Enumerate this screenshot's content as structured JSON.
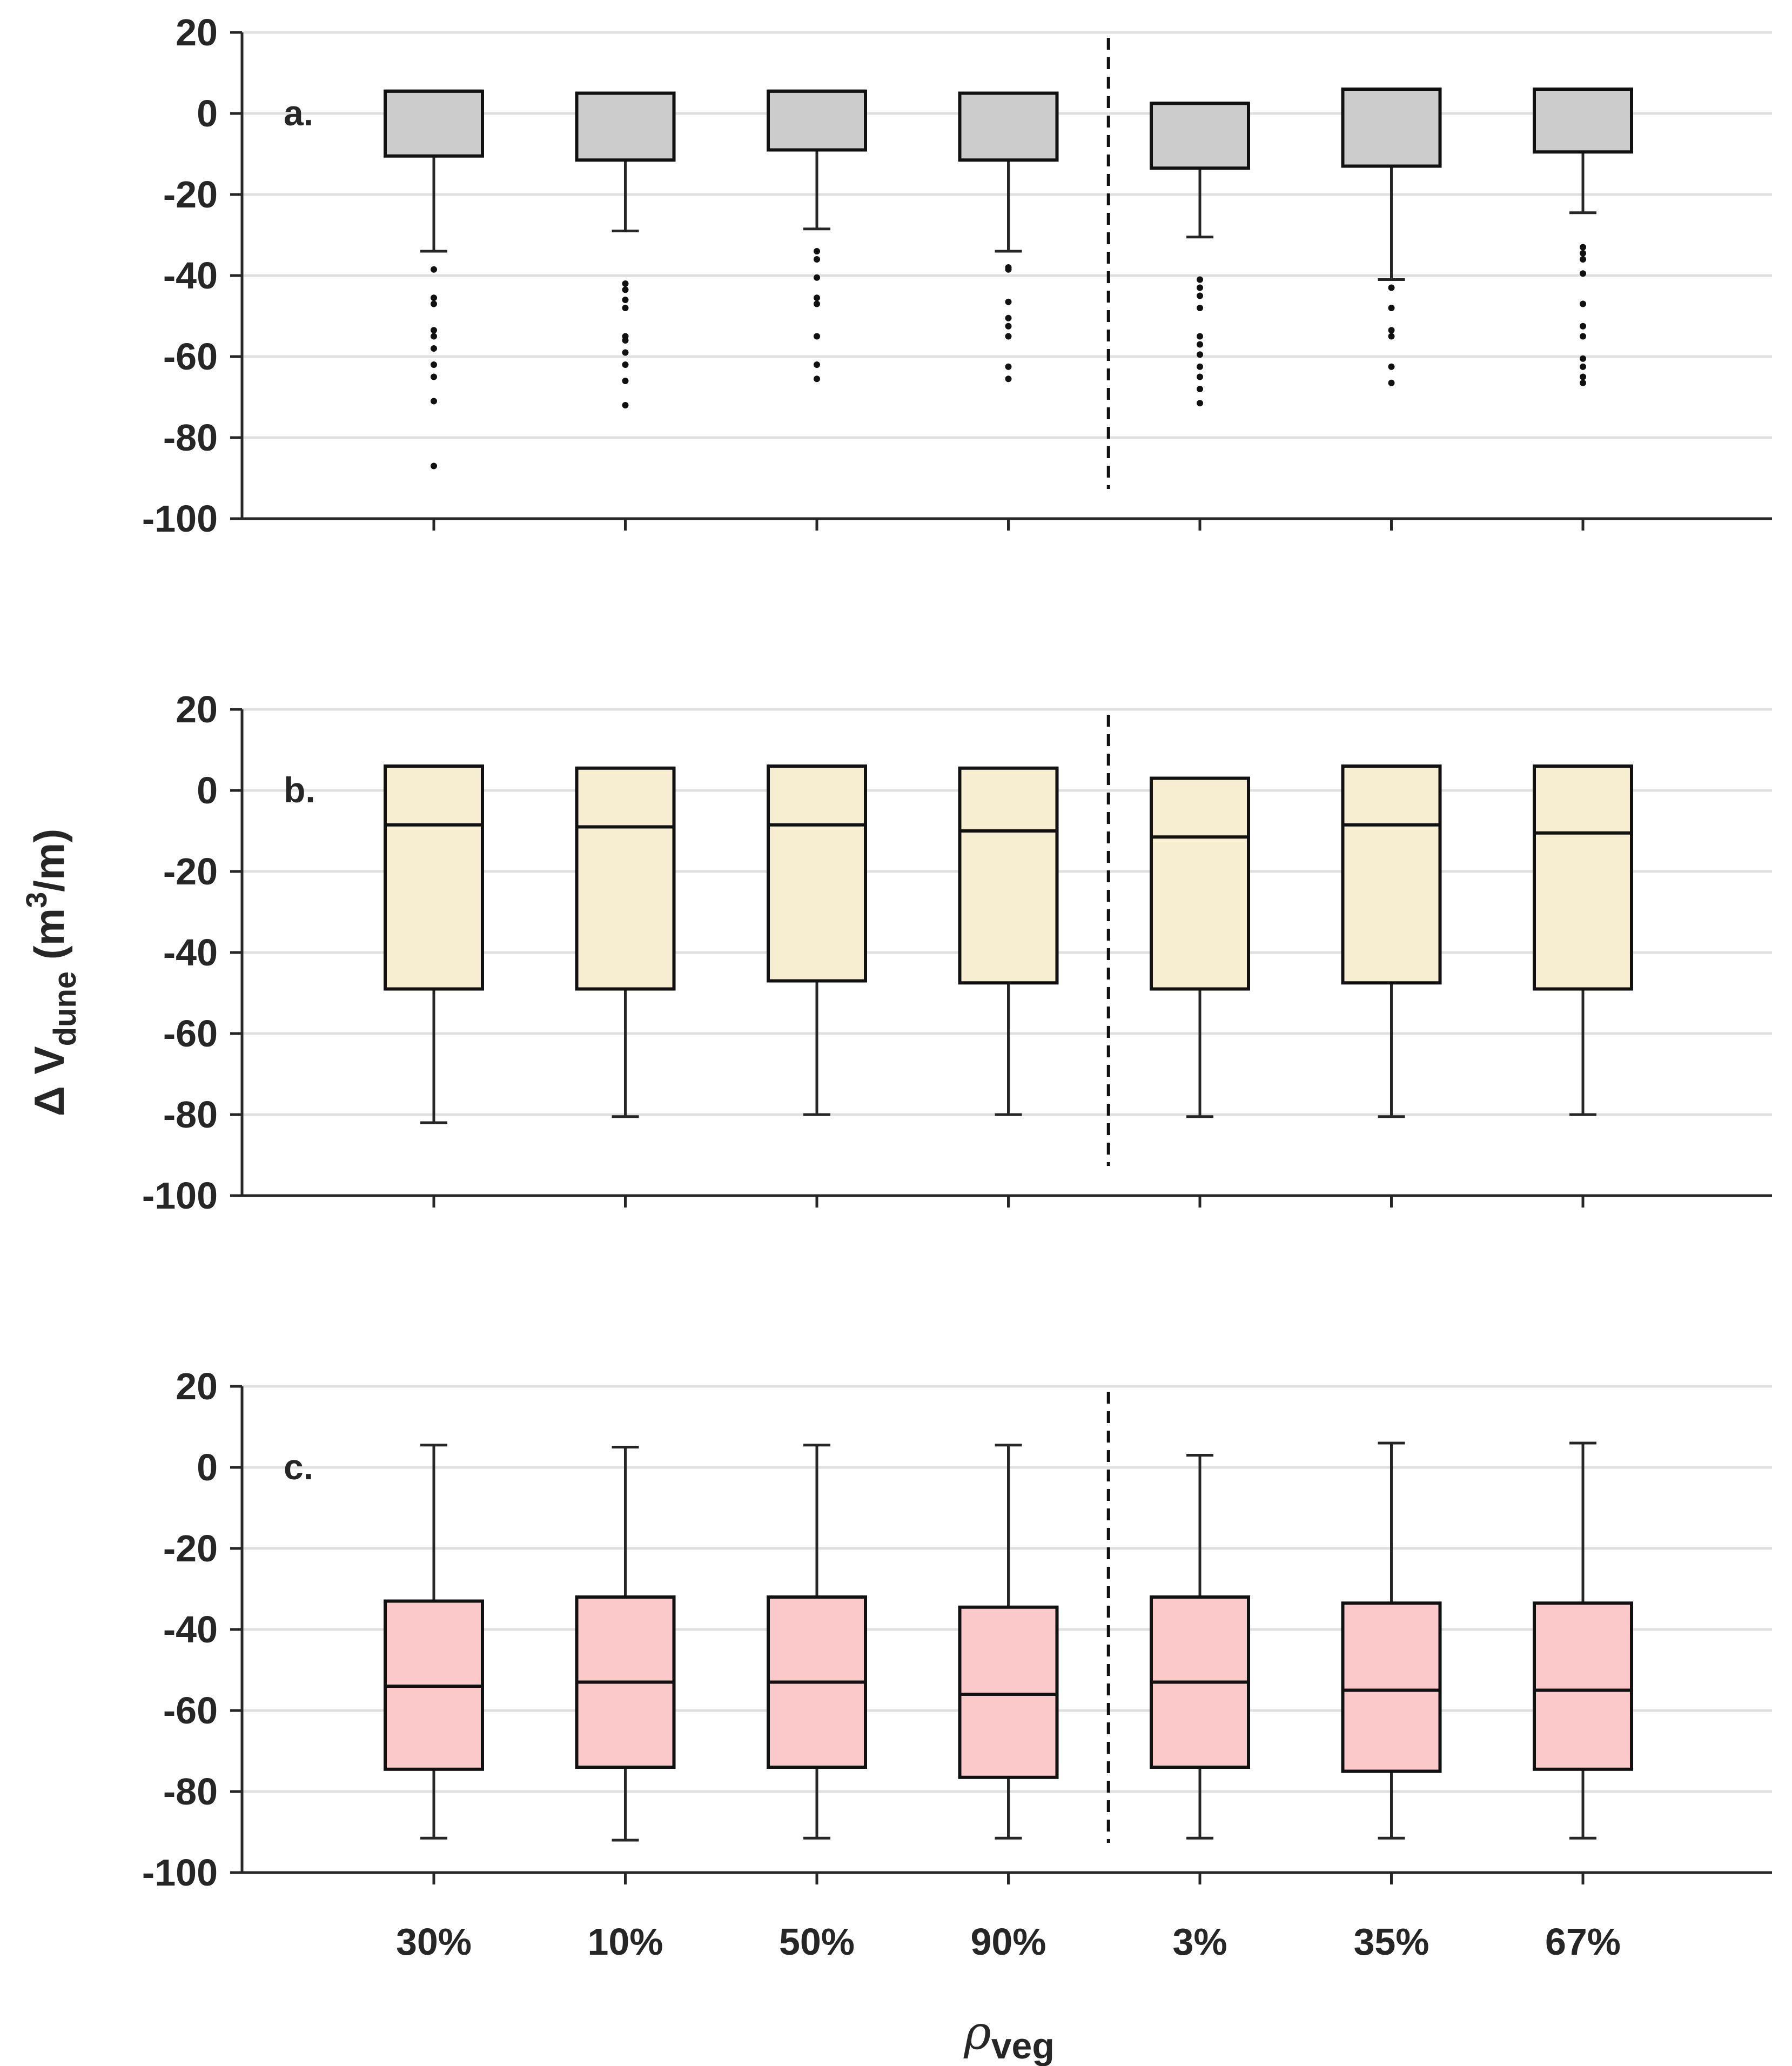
{
  "chart_data": {
    "type": "box",
    "categories": [
      "30%",
      "10%",
      "50%",
      "90%",
      "3%",
      "35%",
      "67%"
    ],
    "divider_after_index": 3,
    "ylim": [
      -100,
      20
    ],
    "yticks": [
      20,
      0,
      -20,
      -40,
      -60,
      -80,
      -100
    ],
    "ytick_labels": [
      "20",
      "0",
      "-20",
      "-40",
      "-60",
      "-80",
      "-100"
    ],
    "ylabel": {
      "prefix": "Δ V",
      "subscript": "dune",
      "unit_open": " (m",
      "unit_sup": "3",
      "unit_close": "/m)"
    },
    "xlabel": {
      "symbol": "ρ",
      "subscript": "veg"
    },
    "grid": true,
    "panels": [
      {
        "label": "a.",
        "fill": "#cccccc",
        "boxes": [
          {
            "q1": -10.5,
            "median": 5.5,
            "q3": 5.5,
            "whisker_low": -34,
            "whisker_high": 5.5,
            "outliers": [
              -38.5,
              -45.5,
              -47,
              -53.5,
              -55,
              -58,
              -62,
              -65,
              -71,
              -87
            ]
          },
          {
            "q1": -11.5,
            "median": 5,
            "q3": 5,
            "whisker_low": -29,
            "whisker_high": 5,
            "outliers": [
              -42,
              -43.5,
              -46,
              -48,
              -55,
              -56,
              -59,
              -62,
              -66,
              -72
            ]
          },
          {
            "q1": -9,
            "median": 5.5,
            "q3": 5.5,
            "whisker_low": -28.5,
            "whisker_high": 5.5,
            "outliers": [
              -34,
              -36,
              -40.5,
              -45.5,
              -47,
              -55,
              -62,
              -65.5
            ]
          },
          {
            "q1": -11.5,
            "median": 5,
            "q3": 5,
            "whisker_low": -34,
            "whisker_high": 5,
            "outliers": [
              -38,
              -38.5,
              -46.5,
              -50.5,
              -52.5,
              -55,
              -62.5,
              -65.5
            ]
          },
          {
            "q1": -13.5,
            "median": 2.5,
            "q3": 2.5,
            "whisker_low": -30.5,
            "whisker_high": 2.5,
            "outliers": [
              -41,
              -43,
              -45,
              -48,
              -55,
              -57,
              -59.5,
              -62.5,
              -65,
              -68,
              -71.5
            ]
          },
          {
            "q1": -13,
            "median": 6,
            "q3": 6,
            "whisker_low": -41,
            "whisker_high": 6,
            "outliers": [
              -43,
              -48,
              -53.5,
              -55,
              -62.5,
              -66.5
            ]
          },
          {
            "q1": -9.5,
            "median": 6,
            "q3": 6,
            "whisker_low": -24.5,
            "whisker_high": 6,
            "outliers": [
              -33,
              -34.5,
              -36,
              -39.5,
              -47,
              -52.5,
              -55,
              -60.5,
              -62.5,
              -65,
              -66.5
            ]
          }
        ]
      },
      {
        "label": "b.",
        "fill": "#f7edd1",
        "boxes": [
          {
            "q1": -49,
            "median": -8.5,
            "q3": 6,
            "whisker_low": -82,
            "whisker_high": 6,
            "outliers": []
          },
          {
            "q1": -49,
            "median": -9,
            "q3": 5.5,
            "whisker_low": -80.5,
            "whisker_high": 5.5,
            "outliers": []
          },
          {
            "q1": -47,
            "median": -8.5,
            "q3": 6,
            "whisker_low": -80,
            "whisker_high": 6,
            "outliers": []
          },
          {
            "q1": -47.5,
            "median": -10,
            "q3": 5.5,
            "whisker_low": -80,
            "whisker_high": 5.5,
            "outliers": []
          },
          {
            "q1": -49,
            "median": -11.5,
            "q3": 3,
            "whisker_low": -80.5,
            "whisker_high": 3,
            "outliers": []
          },
          {
            "q1": -47.5,
            "median": -8.5,
            "q3": 6,
            "whisker_low": -80.5,
            "whisker_high": 6,
            "outliers": []
          },
          {
            "q1": -49,
            "median": -10.5,
            "q3": 6,
            "whisker_low": -80,
            "whisker_high": 6,
            "outliers": []
          }
        ]
      },
      {
        "label": "c.",
        "fill": "#fbc9c9",
        "boxes": [
          {
            "q1": -74.5,
            "median": -54,
            "q3": -33,
            "whisker_low": -91.5,
            "whisker_high": 5.5,
            "outliers": []
          },
          {
            "q1": -74,
            "median": -53,
            "q3": -32,
            "whisker_low": -92,
            "whisker_high": 5,
            "outliers": []
          },
          {
            "q1": -74,
            "median": -53,
            "q3": -32,
            "whisker_low": -91.5,
            "whisker_high": 5.5,
            "outliers": []
          },
          {
            "q1": -76.5,
            "median": -56,
            "q3": -34.5,
            "whisker_low": -91.5,
            "whisker_high": 5.5,
            "outliers": []
          },
          {
            "q1": -74,
            "median": -53,
            "q3": -32,
            "whisker_low": -91.5,
            "whisker_high": 3,
            "outliers": []
          },
          {
            "q1": -75,
            "median": -55,
            "q3": -33.5,
            "whisker_low": -91.5,
            "whisker_high": 6,
            "outliers": []
          },
          {
            "q1": -74.5,
            "median": -55,
            "q3": -33.5,
            "whisker_low": -91.5,
            "whisker_high": 6,
            "outliers": []
          }
        ]
      }
    ]
  }
}
